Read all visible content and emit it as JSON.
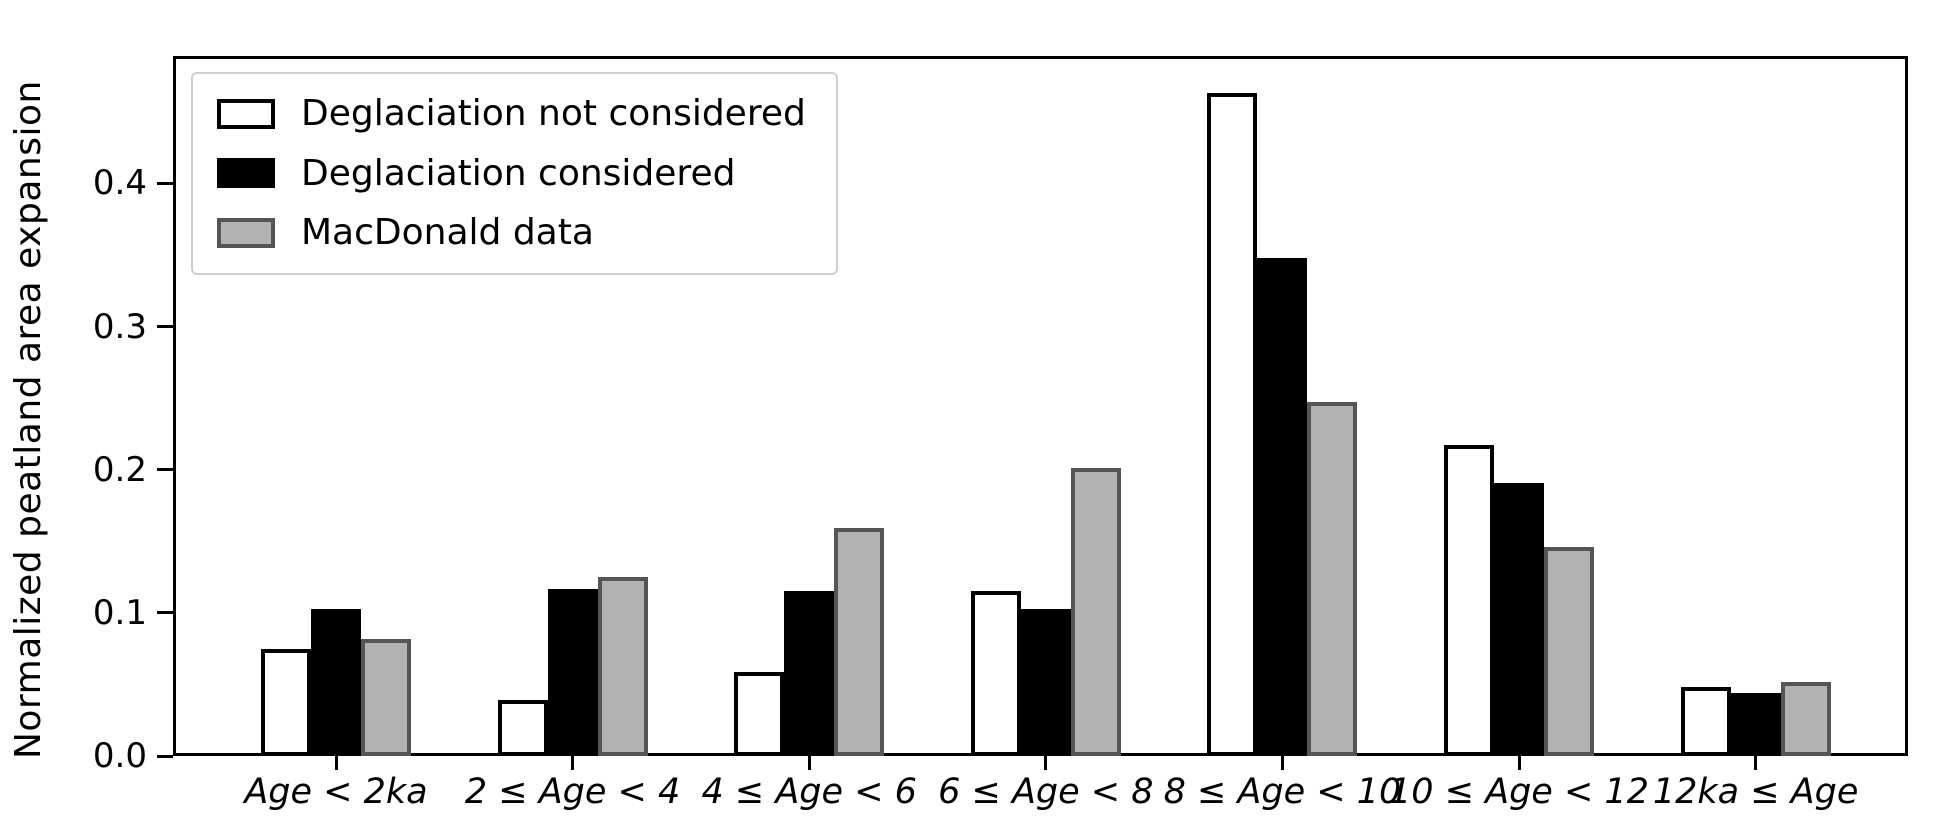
{
  "chart_data": {
    "type": "bar",
    "title": "",
    "xlabel": "",
    "ylabel": "Normalized peatland area expansion",
    "categories": [
      "Age < 2ka",
      "2 ≤ Age < 4",
      "4 ≤ Age < 6",
      "6 ≤ Age < 8",
      "8 ≤ Age < 10",
      "10 ≤ Age < 12",
      "12ka ≤ Age"
    ],
    "series": [
      {
        "name": "Deglaciation not considered",
        "fill": "#ffffff",
        "edge": "#000000",
        "values": [
          0.075,
          0.039,
          0.059,
          0.115,
          0.463,
          0.217,
          0.048
        ]
      },
      {
        "name": "Deglaciation considered",
        "fill": "#000000",
        "edge": "#000000",
        "values": [
          0.103,
          0.117,
          0.115,
          0.103,
          0.348,
          0.191,
          0.044
        ]
      },
      {
        "name": "MacDonald data",
        "fill": "#b2b2b2",
        "edge": "#555555",
        "values": [
          0.082,
          0.125,
          0.159,
          0.201,
          0.247,
          0.146,
          0.052
        ]
      }
    ],
    "yticks": [
      0.0,
      0.1,
      0.2,
      0.3,
      0.4
    ],
    "ylim": [
      0,
      0.489
    ],
    "grid": false,
    "legend_position": "upper left"
  },
  "colors": {
    "axis": "#000000",
    "legend_border": "#cfcfcf",
    "background": "#ffffff"
  }
}
